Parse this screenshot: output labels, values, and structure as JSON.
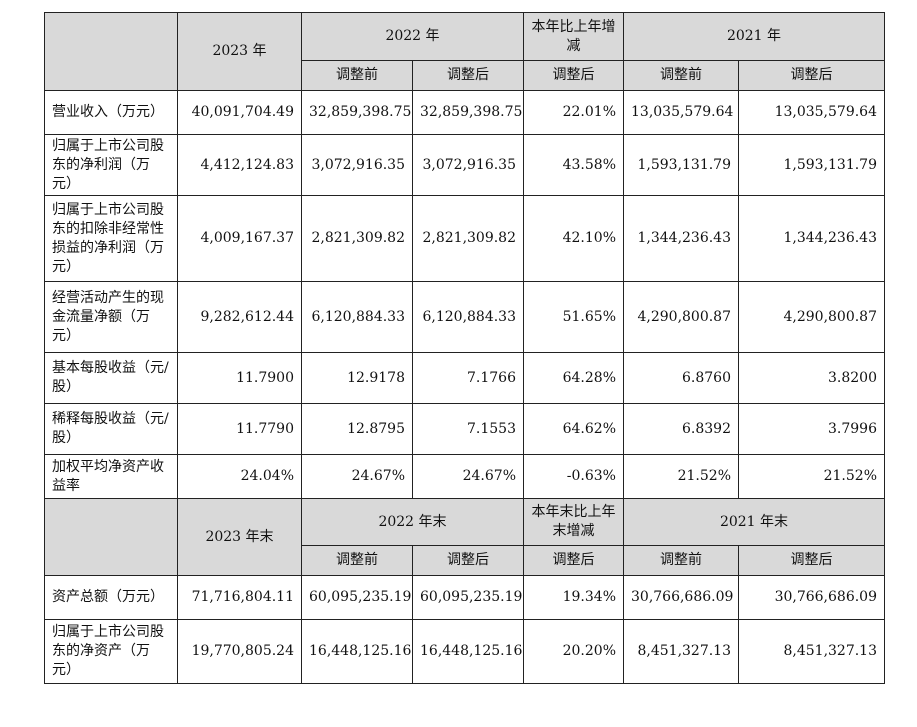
{
  "header1": {
    "year_2023": "2023 年",
    "year_2022": "2022 年",
    "change": "本年比上年增减",
    "year_2021": "2021 年",
    "sub": [
      "调整前",
      "调整后",
      "调整后",
      "调整前",
      "调整后"
    ]
  },
  "rows1": [
    {
      "label": "营业收入（万元）",
      "values": [
        "40,091,704.49",
        "32,859,398.75",
        "32,859,398.75",
        "22.01%",
        "13,035,579.64",
        "13,035,579.64"
      ]
    },
    {
      "label": "归属于上市公司股东的净利润（万元）",
      "values": [
        "4,412,124.83",
        "3,072,916.35",
        "3,072,916.35",
        "43.58%",
        "1,593,131.79",
        "1,593,131.79"
      ]
    },
    {
      "label": "归属于上市公司股东的扣除非经常性损益的净利润（万元）",
      "values": [
        "4,009,167.37",
        "2,821,309.82",
        "2,821,309.82",
        "42.10%",
        "1,344,236.43",
        "1,344,236.43"
      ]
    },
    {
      "label": "经营活动产生的现金流量净额（万元）",
      "values": [
        "9,282,612.44",
        "6,120,884.33",
        "6,120,884.33",
        "51.65%",
        "4,290,800.87",
        "4,290,800.87"
      ]
    },
    {
      "label": "基本每股收益（元/股）",
      "values": [
        "11.7900",
        "12.9178",
        "7.1766",
        "64.28%",
        "6.8760",
        "3.8200"
      ]
    },
    {
      "label": "稀释每股收益（元/股）",
      "values": [
        "11.7790",
        "12.8795",
        "7.1553",
        "64.62%",
        "6.8392",
        "3.7996"
      ]
    },
    {
      "label": "加权平均净资产收益率",
      "values": [
        "24.04%",
        "24.67%",
        "24.67%",
        "-0.63%",
        "21.52%",
        "21.52%"
      ]
    }
  ],
  "header2": {
    "year_2023": "2023 年末",
    "year_2022": "2022 年末",
    "change": "本年末比上年末增减",
    "year_2021": "2021 年末",
    "sub": [
      "调整前",
      "调整后",
      "调整后",
      "调整前",
      "调整后"
    ]
  },
  "rows2": [
    {
      "label": "资产总额（万元）",
      "values": [
        "71,716,804.11",
        "60,095,235.19",
        "60,095,235.19",
        "19.34%",
        "30,766,686.09",
        "30,766,686.09"
      ]
    },
    {
      "label": "归属于上市公司股东的净资产（万元）",
      "values": [
        "19,770,805.24",
        "16,448,125.16",
        "16,448,125.16",
        "20.20%",
        "8,451,327.13",
        "8,451,327.13"
      ]
    }
  ]
}
